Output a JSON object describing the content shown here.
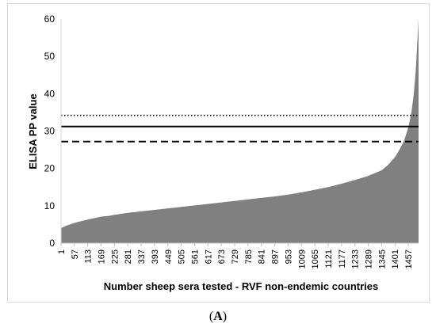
{
  "chart_data": {
    "type": "area",
    "title": "",
    "xlabel": "Number sheep sera tested - RVF non-endemic countries",
    "ylabel": "ELISA PP value",
    "ylim": [
      0,
      60
    ],
    "xlim": [
      1,
      1500
    ],
    "yticks": [
      "0",
      "10",
      "20",
      "30",
      "40",
      "50",
      "60"
    ],
    "xticks": [
      "1",
      "57",
      "113",
      "169",
      "225",
      "281",
      "337",
      "393",
      "449",
      "505",
      "561",
      "617",
      "673",
      "729",
      "785",
      "841",
      "897",
      "953",
      "1009",
      "1065",
      "1121",
      "1177",
      "1233",
      "1289",
      "1345",
      "1401",
      "1457"
    ],
    "grid": false,
    "fill_color": "#808080",
    "series": [
      {
        "x": [
          1,
          20,
          57,
          80,
          113,
          150,
          169,
          200,
          225,
          281,
          337,
          393,
          449,
          505,
          561,
          617,
          673,
          729,
          785,
          841,
          897,
          953,
          1009,
          1065,
          1121,
          1177,
          1233,
          1289,
          1345,
          1370,
          1401,
          1420,
          1440,
          1457,
          1470,
          1480,
          1488,
          1495,
          1500
        ],
        "y": [
          4.0,
          4.6,
          5.4,
          5.8,
          6.3,
          6.8,
          7.1,
          7.3,
          7.6,
          8.1,
          8.5,
          8.9,
          9.3,
          9.7,
          10.1,
          10.5,
          10.9,
          11.3,
          11.7,
          12.1,
          12.5,
          13.0,
          13.6,
          14.3,
          15.0,
          15.9,
          16.9,
          18.0,
          19.5,
          20.8,
          23.0,
          25.0,
          27.5,
          31.0,
          35.0,
          40.0,
          46.0,
          54.0,
          60.0
        ]
      }
    ],
    "reference_lines": [
      {
        "y": 34.2,
        "style": "dotted",
        "color": "#000000"
      },
      {
        "y": 31.2,
        "style": "solid",
        "color": "#000000"
      },
      {
        "y": 27.2,
        "style": "dashed",
        "color": "#000000"
      }
    ]
  },
  "panel_label": {
    "open": "(",
    "letter": "A",
    "close": ")"
  }
}
